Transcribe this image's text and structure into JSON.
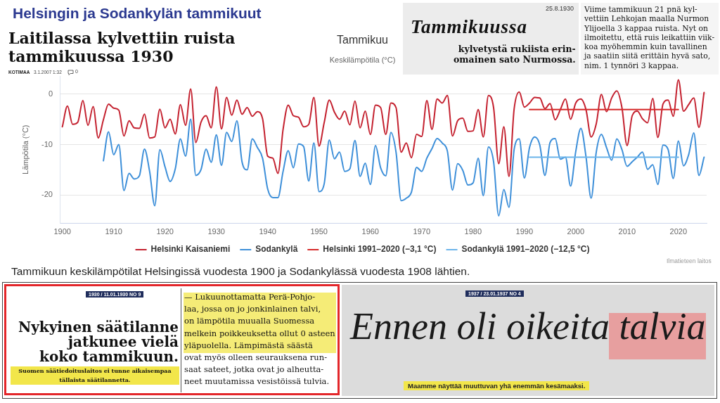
{
  "chart_data": {
    "type": "line",
    "title": "Tammikuu",
    "subtitle": "Keskilämpötila (°C)",
    "ylabel": "Lämpötila (°C)",
    "x": [
      1900,
      1901,
      1902,
      1903,
      1904,
      1905,
      1906,
      1907,
      1908,
      1909,
      1910,
      1911,
      1912,
      1913,
      1914,
      1915,
      1916,
      1917,
      1918,
      1919,
      1920,
      1921,
      1922,
      1923,
      1924,
      1925,
      1926,
      1927,
      1928,
      1929,
      1930,
      1931,
      1932,
      1933,
      1934,
      1935,
      1936,
      1937,
      1938,
      1939,
      1940,
      1941,
      1942,
      1943,
      1944,
      1945,
      1946,
      1947,
      1948,
      1949,
      1950,
      1951,
      1952,
      1953,
      1954,
      1955,
      1956,
      1957,
      1958,
      1959,
      1960,
      1961,
      1962,
      1963,
      1964,
      1965,
      1966,
      1967,
      1968,
      1969,
      1970,
      1971,
      1972,
      1973,
      1974,
      1975,
      1976,
      1977,
      1978,
      1979,
      1980,
      1981,
      1982,
      1983,
      1984,
      1985,
      1986,
      1987,
      1988,
      1989,
      1990,
      1991,
      1992,
      1993,
      1994,
      1995,
      1996,
      1997,
      1998,
      1999,
      2000,
      2001,
      2002,
      2003,
      2004,
      2005,
      2006,
      2007,
      2008,
      2009,
      2010,
      2011,
      2012,
      2013,
      2014,
      2015,
      2016,
      2017,
      2018,
      2019,
      2020,
      2021,
      2022,
      2023,
      2024,
      2025
    ],
    "series": [
      {
        "name": "Helsinki Kaisaniemi",
        "color": "#c4212f",
        "values": [
          -6.5,
          -2.4,
          -6.0,
          -5.6,
          -1.3,
          -6.2,
          -2.5,
          -8.7,
          -5.1,
          -2.0,
          -2.8,
          -3.2,
          -8.3,
          -5.3,
          -6.7,
          -6.8,
          -4.0,
          -8.7,
          -8.5,
          -3.0,
          -6.7,
          -5.0,
          -7.9,
          -2.1,
          -6.2,
          1.0,
          -9.6,
          -5.6,
          -4.3,
          -6.7,
          1.4,
          -6.9,
          -0.7,
          -4.2,
          -1.2,
          -4.0,
          -2.7,
          -4.4,
          -3.5,
          -4.9,
          -12.3,
          -12.7,
          -15.7,
          -7.0,
          -2.2,
          -4.3,
          -4.6,
          -6.5,
          -6.0,
          -0.7,
          -10.3,
          -5.7,
          -1.2,
          -3.6,
          -5.0,
          -3.4,
          -6.1,
          -1.4,
          -6.7,
          -3.4,
          -8.0,
          -2.2,
          -2.7,
          -8.0,
          -1.8,
          -2.7,
          -11.5,
          -9.7,
          -12.6,
          -8.0,
          -8.4,
          -1.3,
          -7.0,
          -1.0,
          -1.8,
          -0.3,
          -8.3,
          -5.3,
          -4.8,
          -7.4,
          -7.3,
          -3.1,
          -8.5,
          -0.3,
          -2.7,
          -13.8,
          -6.5,
          -16.3,
          -3.0,
          0.4,
          -2.6,
          -1.8,
          -0.7,
          -0.8,
          -2.9,
          -1.9,
          -5.1,
          -3.1,
          -1.0,
          -5.0,
          -1.8,
          -1.0,
          -3.1,
          -8.5,
          -5.9,
          -0.1,
          -3.5,
          -0.8,
          0.6,
          -2.7,
          -10.2,
          -4.3,
          -3.4,
          -4.9,
          -5.7,
          -0.9,
          -8.6,
          -2.0,
          -1.2,
          -4.4,
          2.8,
          -3.4,
          -2.1,
          -0.8,
          -6.6,
          0.3
        ]
      },
      {
        "name": "Sodankylä",
        "color": "#3d8fd9",
        "values": [
          null,
          null,
          null,
          null,
          null,
          null,
          null,
          null,
          -13.2,
          -7.5,
          -12.0,
          -10.0,
          -19.1,
          -15.7,
          -16.8,
          -16.2,
          -10.9,
          -15.3,
          -22.1,
          -11.0,
          -14.4,
          -17.3,
          -14.8,
          -8.9,
          -12.3,
          -5.0,
          -16.1,
          -15.0,
          -10.9,
          -13.5,
          -8.1,
          -14.1,
          -7.6,
          -9.4,
          -5.3,
          -13.4,
          -15.0,
          -8.9,
          -10.6,
          -12.7,
          -18.8,
          -20.5,
          -20.5,
          -15.3,
          -11.2,
          -14.6,
          -9.9,
          -10.4,
          -17.2,
          -9.7,
          -19.3,
          -17.8,
          -9.1,
          -12.8,
          -11.5,
          -15.3,
          -14.8,
          -9.2,
          -16.3,
          -13.7,
          -17.9,
          -10.2,
          -14.6,
          -16.2,
          -7.6,
          -11.5,
          -21.1,
          -20.6,
          -19.4,
          -14.5,
          -15.3,
          -12.7,
          -10.8,
          -8.8,
          -9.7,
          -11.3,
          -19.0,
          -13.8,
          -15.1,
          -18.0,
          -17.6,
          -12.7,
          -20.1,
          -10.5,
          -13.4,
          -24.1,
          -18.9,
          -22.4,
          -11.0,
          -8.9,
          -16.6,
          -10.6,
          -8.5,
          -10.1,
          -16.1,
          -9.6,
          -8.8,
          -12.9,
          -12.5,
          -18.2,
          -11.4,
          -6.8,
          -12.4,
          -20.6,
          -11.5,
          -8.0,
          -10.6,
          -13.1,
          -8.9,
          -11.0,
          -14.3,
          -13.4,
          -12.5,
          -11.5,
          -14.9,
          -14.0,
          -17.9,
          -10.1,
          -11.0,
          -16.7,
          -9.3,
          -14.2,
          -12.0,
          -7.7,
          -16.1,
          -12.5
        ]
      },
      {
        "name": "Helsinki 1991–2020 (−3,1 °C)",
        "color": "#d62b2b",
        "values": [
          null,
          null,
          null,
          null,
          null,
          null,
          null,
          null,
          null,
          null,
          null,
          null,
          null,
          null,
          null,
          null,
          null,
          null,
          null,
          null,
          null,
          null,
          null,
          null,
          null,
          null,
          null,
          null,
          null,
          null,
          null,
          null,
          null,
          null,
          null,
          null,
          null,
          null,
          null,
          null,
          null,
          null,
          null,
          null,
          null,
          null,
          null,
          null,
          null,
          null,
          null,
          null,
          null,
          null,
          null,
          null,
          null,
          null,
          null,
          null,
          null,
          null,
          null,
          null,
          null,
          null,
          null,
          null,
          null,
          null,
          null,
          null,
          null,
          null,
          null,
          null,
          null,
          null,
          null,
          null,
          null,
          null,
          null,
          null,
          null,
          null,
          null,
          null,
          null,
          null,
          null,
          -3.1,
          -3.1,
          -3.1,
          -3.1,
          -3.1,
          -3.1,
          -3.1,
          -3.1,
          -3.1,
          -3.1,
          -3.1,
          -3.1,
          -3.1,
          -3.1,
          -3.1,
          -3.1,
          -3.1,
          -3.1,
          -3.1,
          -3.1,
          -3.1,
          -3.1,
          -3.1,
          -3.1,
          -3.1,
          -3.1,
          -3.1,
          -3.1,
          -3.1,
          -3.1,
          null,
          null,
          null,
          null,
          null
        ]
      },
      {
        "name": "Sodankylä 1991–2020 (−12,5 °C)",
        "color": "#6cb5ea",
        "values": [
          null,
          null,
          null,
          null,
          null,
          null,
          null,
          null,
          null,
          null,
          null,
          null,
          null,
          null,
          null,
          null,
          null,
          null,
          null,
          null,
          null,
          null,
          null,
          null,
          null,
          null,
          null,
          null,
          null,
          null,
          null,
          null,
          null,
          null,
          null,
          null,
          null,
          null,
          null,
          null,
          null,
          null,
          null,
          null,
          null,
          null,
          null,
          null,
          null,
          null,
          null,
          null,
          null,
          null,
          null,
          null,
          null,
          null,
          null,
          null,
          null,
          null,
          null,
          null,
          null,
          null,
          null,
          null,
          null,
          null,
          null,
          null,
          null,
          null,
          null,
          null,
          null,
          null,
          null,
          null,
          null,
          null,
          null,
          null,
          null,
          null,
          null,
          null,
          null,
          null,
          null,
          -12.5,
          -12.5,
          -12.5,
          -12.5,
          -12.5,
          -12.5,
          -12.5,
          -12.5,
          -12.5,
          -12.5,
          -12.5,
          -12.5,
          -12.5,
          -12.5,
          -12.5,
          -12.5,
          -12.5,
          -12.5,
          -12.5,
          -12.5,
          -12.5,
          -12.5,
          -12.5,
          -12.5,
          -12.5,
          -12.5,
          -12.5,
          -12.5,
          -12.5,
          -12.5,
          null,
          null,
          null,
          null,
          null
        ]
      }
    ],
    "xlim": [
      1899.5,
      2025.5
    ],
    "xticks": [
      1900,
      1910,
      1920,
      1930,
      1940,
      1950,
      1960,
      1970,
      1980,
      1990,
      2000,
      2010,
      2020
    ],
    "ylim": [
      -25.5,
      3.5
    ],
    "yticks": [
      -20,
      -10,
      0
    ],
    "grid": "y",
    "legend": "bottom",
    "annotations": [
      "Helsingin ja Sodankylän tammikuut",
      "Laitilassa kylvettiin ruista\ntammikuussa 1930",
      "KOTIMAA",
      "3.1.2007 1:32",
      "0",
      "25.8.1930",
      "Tammikuussa",
      "kylvetystä rukiista erin-\nomainen sato Nurmossa.",
      "Viime tammikuun 21 pnä kyl-\nvettiin Lehkojan maalla Nurmon\nYlijoella 3 kappaa ruista. Nyt on\nilmoitettu, että ruis leikattiin viik-\nkoa myöhemmin kuin tavallinen\nja saatiin siitä erittäin hyvä sato,\nnim. 1 tynnöri 3 kappaa.",
      "Tammikuun keskilämpötilat Helsingissä vuodesta 1900 ja Sodankylässä vuodesta 1908 lähtien.",
      "Ilmatieteen laitos",
      "1930 / 11.01.1930 NO 9",
      "Nykyinen säätilanne\njatkunee vielä\nkoko tammikuun.",
      "Suomen säätiedoituslaitos ei tunne aikaisempaa\ntällaista säätilannetta.",
      "— Lukuunottamatta Perä-Pohjo-\nlaa, jossa on jo jonkinlainen talvi,\non lämpötila muualla Suomessa\nmelkein poikkeuksetta ollut 0 asteen\nyläpuolella. Lämpimästä säästä\novat myös olleen seurauksena run-\nsaat sateet, jotka ovat jo alheutta-\nneet muutamissa vesistöissä tulvia.",
      "1937 / 23.01.1937 NO 4",
      "Ennen oli oikeita talvia",
      "Maamme näyttää muuttuvan yhä enemmän kesämaaksi."
    ]
  }
}
